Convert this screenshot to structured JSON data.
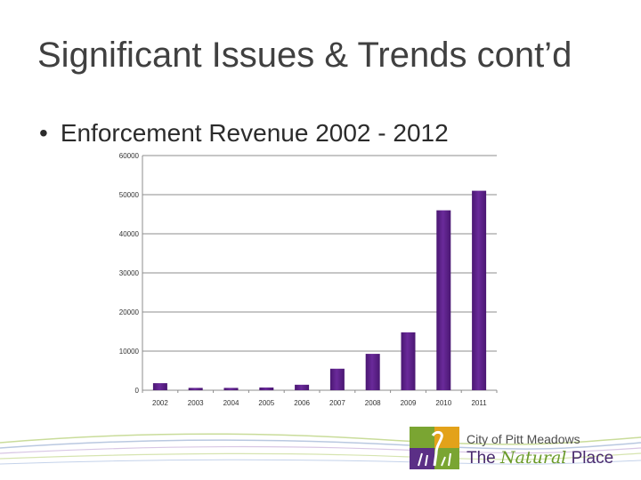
{
  "slide": {
    "title": "Significant Issues & Trends cont’d",
    "bullet": "Enforcement Revenue 2002 - 2012"
  },
  "logo": {
    "line1": "City of Pitt Meadows",
    "line2_pre": "The",
    "line2_script": "Natural",
    "line2_post": "Place"
  },
  "colors": {
    "bar": "#6a2a9a",
    "bar_dark": "#4a1772",
    "grid": "#8c8c8c",
    "title_text": "#404040"
  },
  "chart_data": {
    "type": "bar",
    "categories": [
      "2002",
      "2003",
      "2004",
      "2005",
      "2006",
      "2007",
      "2008",
      "2009",
      "2010",
      "2011"
    ],
    "values": [
      1800,
      600,
      600,
      700,
      1400,
      5500,
      9300,
      14800,
      46000,
      51000
    ],
    "ylim": [
      0,
      60000
    ],
    "yticks": [
      0,
      10000,
      20000,
      30000,
      40000,
      50000,
      60000
    ],
    "grid": true,
    "legend": "none"
  }
}
